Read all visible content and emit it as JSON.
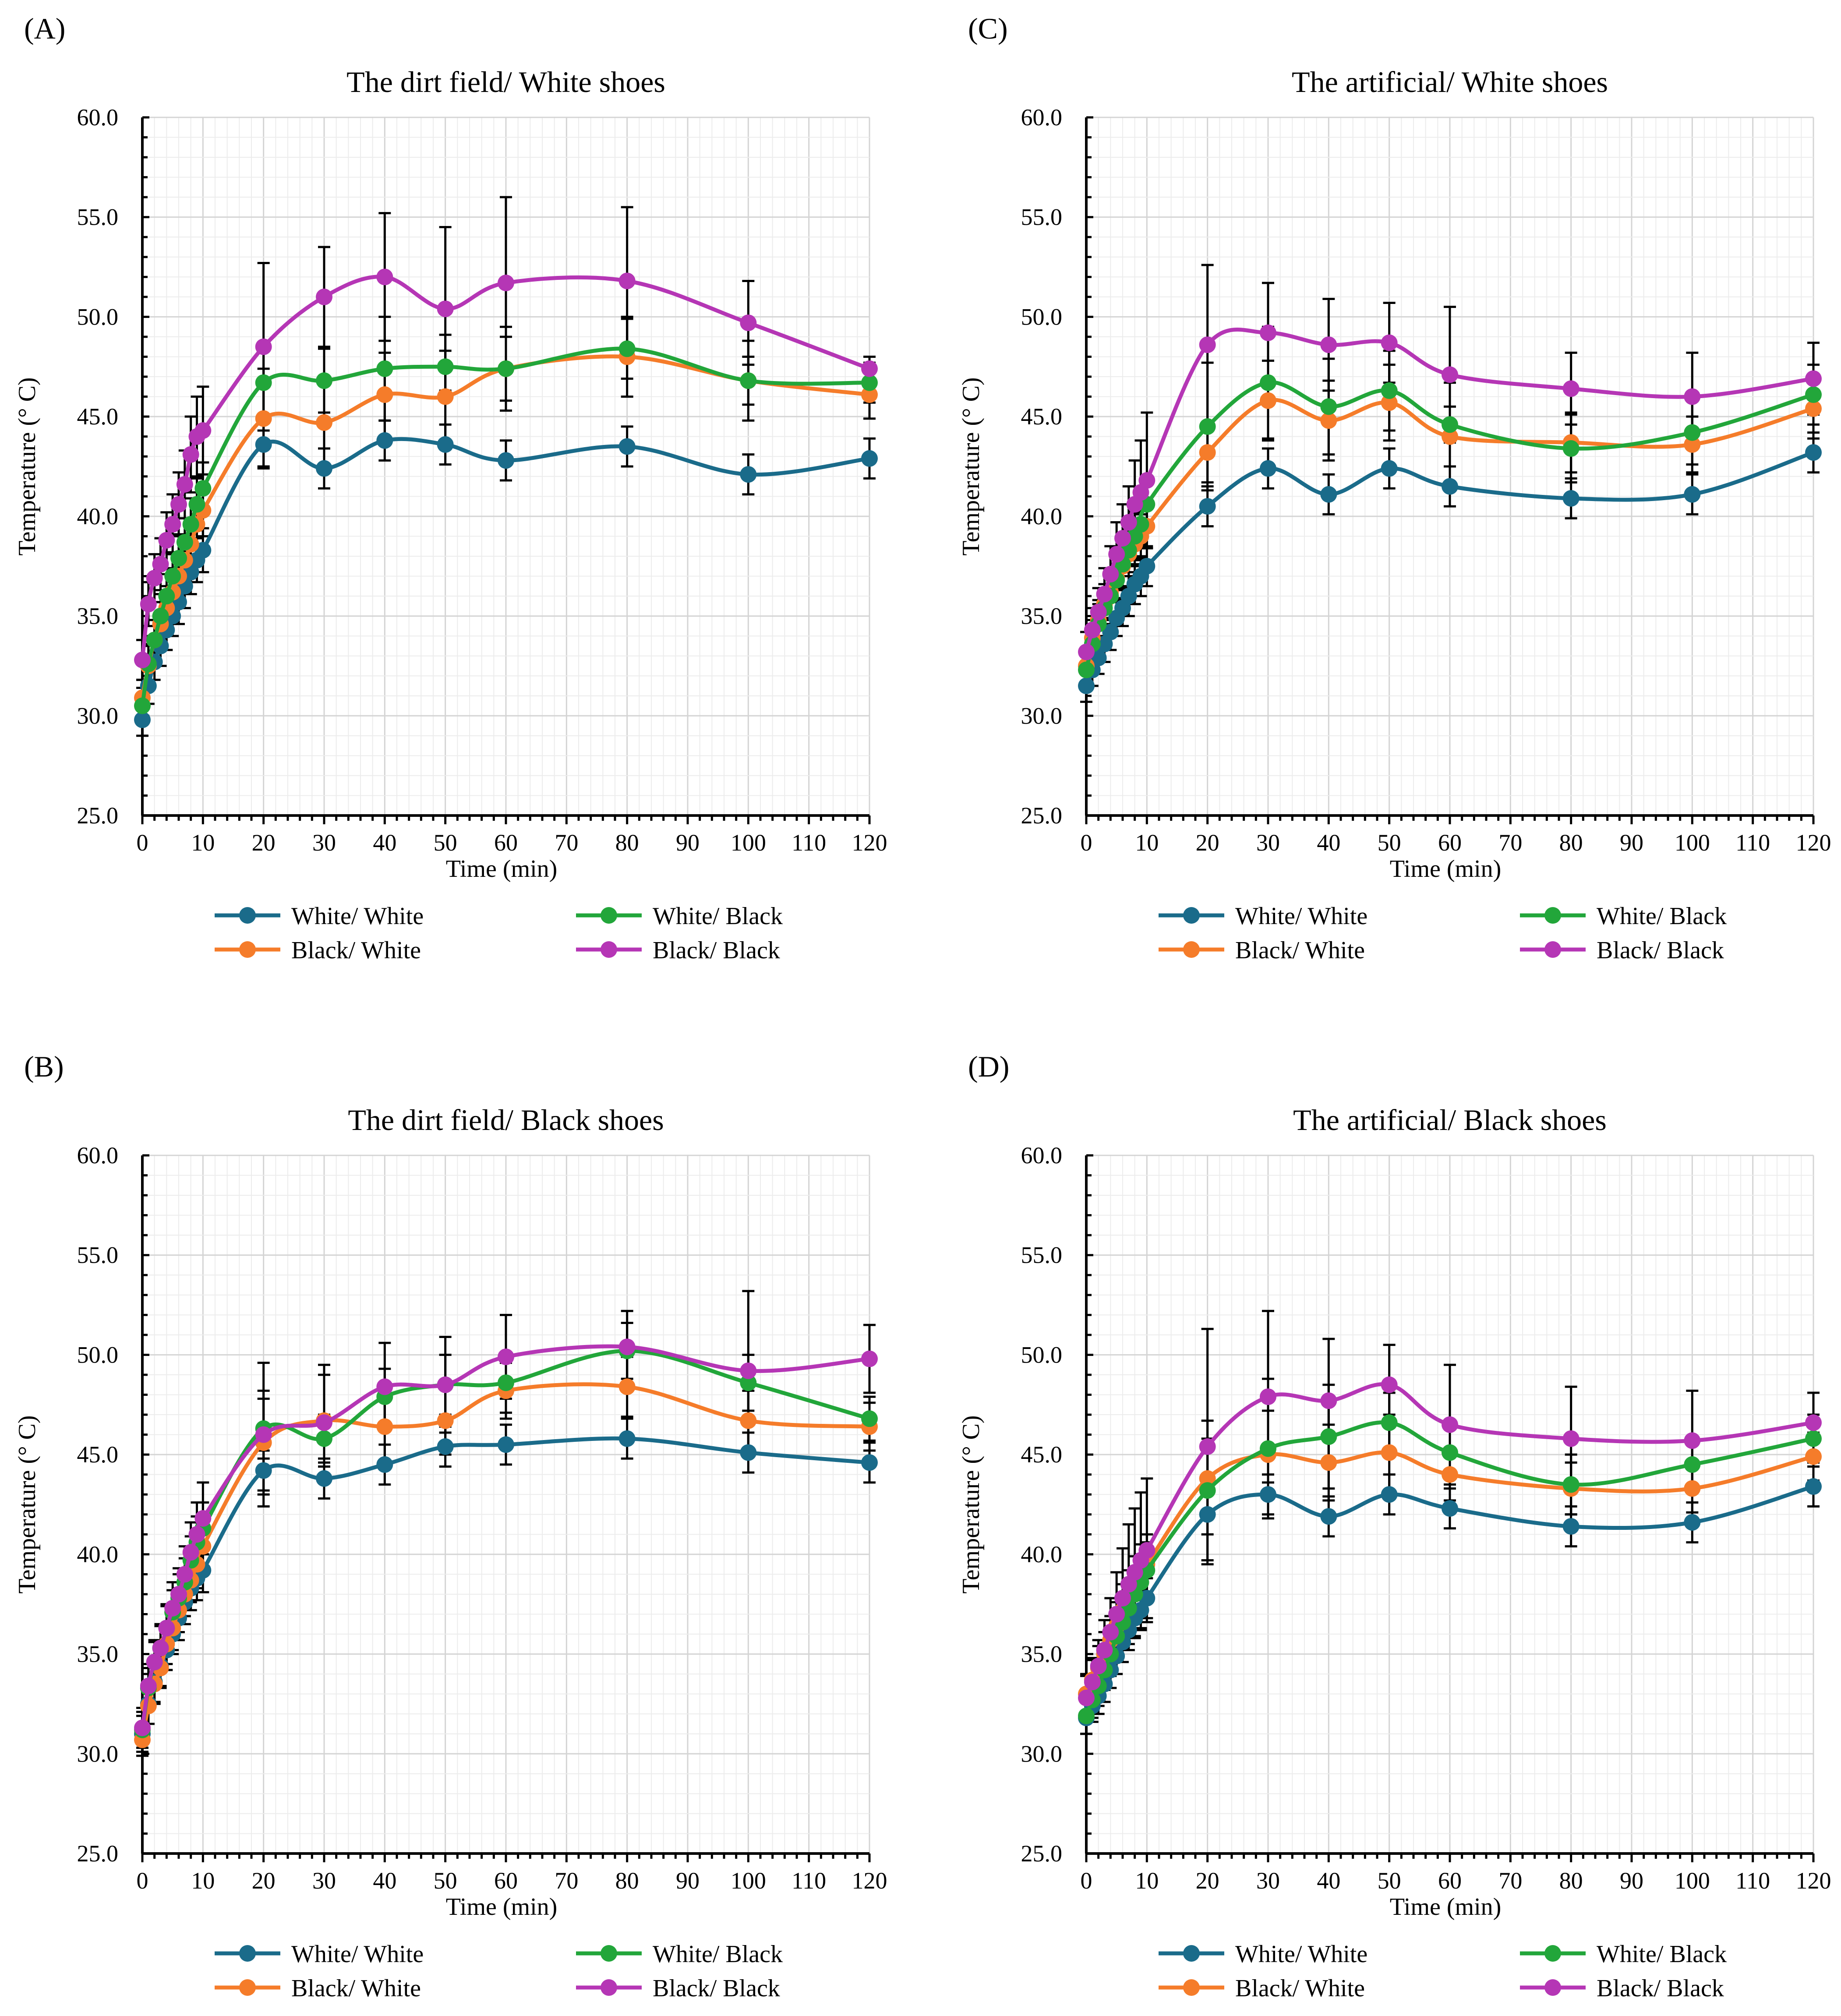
{
  "figure": {
    "series_names": [
      "White/ White",
      "White/ Black",
      "Black/ White",
      "Black/ Black"
    ],
    "series_colors": [
      "#1a6b8a",
      "#22a63a",
      "#f57c2a",
      "#b536b5"
    ],
    "legend_marker_icon": "circle-marker-icon"
  },
  "chart_data": [
    {
      "panel": "(A)",
      "type": "line",
      "title": "The dirt field/ White shoes",
      "xlabel": "Time (min)",
      "ylabel": "Temperature (° C)",
      "xlim": [
        0,
        120
      ],
      "ylim": [
        25,
        60
      ],
      "xticks": [
        "0",
        "10",
        "20",
        "30",
        "40",
        "50",
        "60",
        "70",
        "80",
        "90",
        "100",
        "110",
        "120"
      ],
      "yticks": [
        "25.0",
        "30.0",
        "35.0",
        "40.0",
        "45.0",
        "50.0",
        "55.0",
        "60.0"
      ],
      "x": [
        0,
        1,
        2,
        3,
        4,
        5,
        6,
        7,
        8,
        9,
        10,
        20,
        30,
        40,
        50,
        60,
        80,
        100,
        120
      ],
      "series": [
        {
          "name": "White/ White",
          "values": [
            29.8,
            31.5,
            32.7,
            33.5,
            34.3,
            35.0,
            35.7,
            36.5,
            37.2,
            37.8,
            38.3,
            43.6,
            42.4,
            43.8,
            43.6,
            42.8,
            43.5,
            42.1,
            42.9
          ],
          "errors": [
            0.8,
            0.9,
            0.9,
            1.0,
            1.0,
            1.0,
            1.1,
            1.1,
            1.1,
            1.1,
            1.1,
            1.1,
            1.0,
            1.0,
            1.0,
            1.0,
            1.0,
            1.0,
            1.0
          ]
        },
        {
          "name": "White/ Black",
          "values": [
            30.5,
            32.6,
            33.8,
            35.0,
            36.0,
            37.0,
            37.9,
            38.7,
            39.6,
            40.6,
            41.4,
            46.7,
            46.8,
            47.4,
            47.5,
            47.4,
            48.4,
            46.8,
            46.7
          ],
          "errors": [
            0.9,
            1.0,
            1.0,
            1.1,
            1.1,
            1.2,
            1.2,
            1.2,
            1.3,
            1.3,
            1.3,
            1.6,
            1.6,
            2.6,
            1.6,
            1.6,
            1.5,
            1.2,
            1.0
          ]
        },
        {
          "name": "Black/ White",
          "values": [
            30.9,
            32.5,
            33.8,
            34.6,
            35.4,
            36.2,
            37.0,
            37.8,
            38.6,
            39.6,
            40.3,
            44.9,
            44.7,
            46.1,
            46.0,
            47.4,
            48.0,
            46.8,
            46.1
          ],
          "errors": [
            0.9,
            1.0,
            1.0,
            1.1,
            1.1,
            1.1,
            1.2,
            1.2,
            1.2,
            1.3,
            1.3,
            2.5,
            2.2,
            2.1,
            2.3,
            2.1,
            2.0,
            2.0,
            1.2
          ]
        },
        {
          "name": "Black/ Black",
          "values": [
            32.8,
            35.6,
            36.9,
            37.6,
            38.8,
            39.6,
            40.6,
            41.6,
            43.1,
            44.0,
            44.3,
            48.5,
            51.0,
            52.0,
            50.4,
            51.7,
            51.8,
            49.7,
            47.4
          ],
          "errors": [
            1.0,
            1.1,
            1.2,
            1.3,
            1.4,
            1.5,
            1.6,
            1.7,
            1.9,
            2.0,
            2.2,
            4.2,
            2.5,
            3.2,
            4.1,
            4.3,
            3.7,
            2.1,
            0.6
          ]
        }
      ]
    },
    {
      "panel": "(B)",
      "type": "line",
      "title": "The dirt field/ Black shoes",
      "xlabel": "Time (min)",
      "ylabel": "Temperature (° C)",
      "xlim": [
        0,
        120
      ],
      "ylim": [
        25,
        60
      ],
      "xticks": [
        "0",
        "10",
        "20",
        "30",
        "40",
        "50",
        "60",
        "70",
        "80",
        "90",
        "100",
        "110",
        "120"
      ],
      "yticks": [
        "25.0",
        "30.0",
        "35.0",
        "40.0",
        "45.0",
        "50.0",
        "55.0",
        "60.0"
      ],
      "x": [
        0,
        1,
        2,
        3,
        4,
        5,
        6,
        7,
        8,
        9,
        10,
        20,
        30,
        40,
        50,
        60,
        80,
        100,
        120
      ],
      "series": [
        {
          "name": "White/ White",
          "values": [
            31.0,
            32.5,
            33.6,
            34.4,
            35.2,
            36.0,
            36.8,
            37.6,
            38.3,
            38.8,
            39.2,
            44.2,
            43.8,
            44.5,
            45.4,
            45.5,
            45.8,
            45.1,
            44.6
          ],
          "errors": [
            0.9,
            1.0,
            1.0,
            1.0,
            1.0,
            1.0,
            1.1,
            1.1,
            1.1,
            1.1,
            1.1,
            1.0,
            1.0,
            1.0,
            1.0,
            1.0,
            1.0,
            1.0,
            1.0
          ]
        },
        {
          "name": "White/ Black",
          "values": [
            31.2,
            33.3,
            34.6,
            35.3,
            36.3,
            37.1,
            37.8,
            38.6,
            39.7,
            40.6,
            41.3,
            46.3,
            45.8,
            47.9,
            48.5,
            48.6,
            50.2,
            48.6,
            46.8
          ],
          "errors": [
            0.9,
            1.0,
            1.0,
            1.1,
            1.1,
            1.1,
            1.2,
            1.2,
            1.2,
            1.3,
            1.3,
            1.5,
            1.2,
            1.4,
            1.5,
            1.5,
            1.4,
            1.4,
            1.1
          ]
        },
        {
          "name": "Black/ White",
          "values": [
            30.7,
            32.4,
            33.5,
            34.3,
            35.5,
            36.3,
            37.2,
            38.0,
            38.7,
            39.5,
            40.4,
            45.6,
            46.7,
            46.4,
            46.7,
            48.2,
            48.4,
            46.7,
            46.4
          ],
          "errors": [
            0.8,
            0.9,
            1.0,
            1.0,
            1.0,
            1.1,
            1.1,
            1.1,
            1.1,
            1.2,
            1.2,
            2.6,
            2.3,
            1.9,
            1.7,
            1.4,
            1.5,
            1.5,
            1.2
          ]
        },
        {
          "name": "Black/ Black",
          "values": [
            31.3,
            33.4,
            34.6,
            35.3,
            36.3,
            37.3,
            38.0,
            39.0,
            40.1,
            41.0,
            41.8,
            46.0,
            46.6,
            48.4,
            48.5,
            49.9,
            50.4,
            49.2,
            49.8
          ],
          "errors": [
            1.0,
            1.1,
            1.1,
            1.2,
            1.2,
            1.3,
            1.3,
            1.4,
            1.5,
            1.6,
            1.8,
            3.6,
            2.9,
            2.2,
            2.4,
            2.1,
            1.8,
            4.0,
            1.7
          ]
        }
      ]
    },
    {
      "panel": "(C)",
      "type": "line",
      "title": "The artificial/ White shoes",
      "xlabel": "Time (min)",
      "ylabel": "Temperature (° C)",
      "xlim": [
        0,
        120
      ],
      "ylim": [
        25,
        60
      ],
      "xticks": [
        "0",
        "10",
        "20",
        "30",
        "40",
        "50",
        "60",
        "70",
        "80",
        "90",
        "100",
        "110",
        "120"
      ],
      "yticks": [
        "25.0",
        "30.0",
        "35.0",
        "40.0",
        "45.0",
        "50.0",
        "55.0",
        "60.0"
      ],
      "x": [
        0,
        1,
        2,
        3,
        4,
        5,
        6,
        7,
        8,
        9,
        10,
        20,
        30,
        40,
        50,
        60,
        80,
        100,
        120
      ],
      "series": [
        {
          "name": "White/ White",
          "values": [
            31.5,
            32.3,
            32.9,
            33.6,
            34.2,
            34.9,
            35.4,
            36.0,
            36.6,
            37.0,
            37.5,
            40.5,
            42.4,
            41.1,
            42.4,
            41.5,
            40.9,
            41.1,
            43.2
          ],
          "errors": [
            0.8,
            0.8,
            0.8,
            0.9,
            0.9,
            0.9,
            0.9,
            1.0,
            1.0,
            1.0,
            1.0,
            1.0,
            1.0,
            1.0,
            1.0,
            1.0,
            1.0,
            1.0,
            1.0
          ]
        },
        {
          "name": "White/ Black",
          "values": [
            32.3,
            33.6,
            34.6,
            35.4,
            36.0,
            36.8,
            37.6,
            38.3,
            39.0,
            39.6,
            40.6,
            44.5,
            46.7,
            45.5,
            46.3,
            44.6,
            43.4,
            44.2,
            46.1
          ],
          "errors": [
            0.9,
            1.0,
            1.0,
            1.0,
            1.1,
            1.1,
            1.1,
            1.1,
            1.2,
            1.2,
            1.2,
            3.2,
            2.8,
            2.4,
            2.0,
            2.1,
            1.7,
            1.6,
            1.5
          ]
        },
        {
          "name": "Black/ White",
          "values": [
            32.5,
            33.9,
            34.8,
            35.6,
            36.2,
            36.9,
            37.5,
            38.1,
            38.6,
            39.0,
            39.5,
            43.2,
            45.8,
            44.8,
            45.7,
            44.0,
            43.7,
            43.6,
            45.4
          ],
          "errors": [
            0.9,
            0.9,
            1.0,
            1.0,
            1.0,
            1.0,
            1.1,
            1.1,
            1.1,
            1.1,
            1.1,
            1.5,
            2.0,
            2.0,
            1.9,
            1.5,
            1.5,
            1.4,
            1.5
          ]
        },
        {
          "name": "Black/ Black",
          "values": [
            33.2,
            34.3,
            35.2,
            36.1,
            37.1,
            38.1,
            38.9,
            39.7,
            40.6,
            41.2,
            41.8,
            48.6,
            49.2,
            48.6,
            48.7,
            47.1,
            46.4,
            46.0,
            46.9
          ],
          "errors": [
            1.0,
            1.1,
            1.2,
            1.3,
            1.4,
            1.6,
            1.7,
            1.8,
            2.2,
            2.6,
            3.4,
            4.0,
            2.5,
            2.3,
            2.0,
            3.4,
            1.8,
            2.2,
            1.8
          ]
        }
      ]
    },
    {
      "panel": "(D)",
      "type": "line",
      "title": "The artificial/ Black shoes",
      "xlabel": "Time (min)",
      "ylabel": "Temperature (° C)",
      "xlim": [
        0,
        120
      ],
      "ylim": [
        25,
        60
      ],
      "xticks": [
        "0",
        "10",
        "20",
        "30",
        "40",
        "50",
        "60",
        "70",
        "80",
        "90",
        "100",
        "110",
        "120"
      ],
      "yticks": [
        "25.0",
        "30.0",
        "35.0",
        "40.0",
        "45.0",
        "50.0",
        "55.0",
        "60.0"
      ],
      "x": [
        0,
        1,
        2,
        3,
        4,
        5,
        6,
        7,
        8,
        9,
        10,
        20,
        30,
        40,
        50,
        60,
        80,
        100,
        120
      ],
      "series": [
        {
          "name": "White/ White",
          "values": [
            31.8,
            32.4,
            32.9,
            33.5,
            34.2,
            34.9,
            35.6,
            36.2,
            36.8,
            37.2,
            37.8,
            42.0,
            43.0,
            41.9,
            43.0,
            42.3,
            41.4,
            41.6,
            43.4
          ],
          "errors": [
            0.8,
            0.8,
            0.9,
            0.9,
            0.9,
            0.9,
            1.0,
            1.0,
            1.0,
            1.0,
            1.0,
            1.0,
            1.0,
            1.0,
            1.0,
            1.0,
            1.0,
            1.0,
            1.0
          ]
        },
        {
          "name": "White/ Black",
          "values": [
            31.9,
            32.7,
            33.4,
            34.2,
            35.0,
            35.9,
            36.6,
            37.3,
            38.0,
            38.6,
            39.2,
            43.2,
            45.3,
            45.9,
            46.6,
            45.1,
            43.5,
            44.5,
            45.8
          ],
          "errors": [
            0.9,
            0.9,
            1.0,
            1.0,
            1.1,
            1.1,
            1.2,
            1.2,
            1.3,
            1.4,
            1.4,
            3.5,
            3.5,
            2.6,
            1.5,
            1.3,
            1.5,
            1.3,
            1.2
          ]
        },
        {
          "name": "Black/ White",
          "values": [
            33.0,
            33.7,
            34.3,
            35.0,
            35.7,
            36.4,
            37.2,
            37.9,
            38.5,
            39.1,
            39.5,
            43.8,
            45.0,
            44.6,
            45.1,
            44.0,
            43.3,
            43.3,
            44.9
          ],
          "errors": [
            1.0,
            1.0,
            1.1,
            1.1,
            1.2,
            1.2,
            1.3,
            1.3,
            1.4,
            1.4,
            1.5,
            2.0,
            2.2,
            1.9,
            1.9,
            1.3,
            1.3,
            1.2,
            1.2
          ]
        },
        {
          "name": "Black/ Black",
          "values": [
            32.8,
            33.6,
            34.4,
            35.2,
            36.1,
            37.0,
            37.8,
            38.5,
            39.1,
            39.7,
            40.2,
            45.4,
            47.9,
            47.7,
            48.5,
            46.5,
            45.8,
            45.7,
            46.6
          ],
          "errors": [
            1.1,
            1.2,
            1.3,
            1.5,
            1.7,
            2.1,
            2.5,
            3.0,
            3.2,
            3.4,
            3.6,
            5.9,
            4.3,
            3.1,
            2.0,
            3.0,
            2.6,
            2.5,
            1.5
          ]
        }
      ]
    }
  ]
}
